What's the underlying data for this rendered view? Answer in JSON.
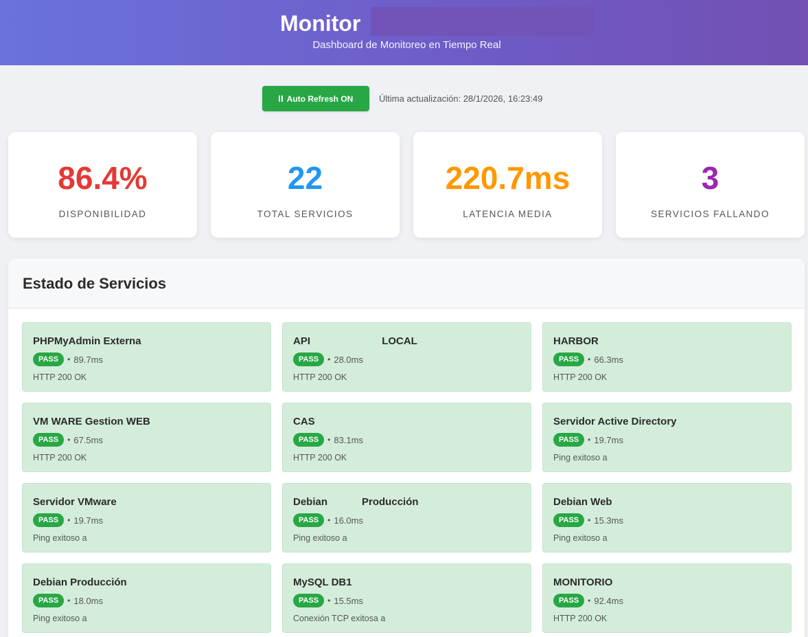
{
  "header": {
    "title": "Monitor",
    "subtitle": "Dashboard de Monitoreo en Tiempo Real"
  },
  "controls": {
    "refresh_label": "Auto Refresh ON",
    "last_update": "Última actualización: 28/1/2026, 16:23:49"
  },
  "stats": [
    {
      "value": "86.4%",
      "label": "DISPONIBILIDAD",
      "color": "#e53935"
    },
    {
      "value": "22",
      "label": "TOTAL SERVICIOS",
      "color": "#2196f3"
    },
    {
      "value": "220.7ms",
      "label": "LATENCIA MEDIA",
      "color": "#ff9800"
    },
    {
      "value": "3",
      "label": "SERVICIOS FALLANDO",
      "color": "#9c27b0"
    }
  ],
  "services": {
    "title": "Estado de Servicios",
    "items": [
      {
        "name": "PHPMyAdmin Externa",
        "status": "PASS",
        "sep": "•",
        "latency": "89.7ms",
        "detail": "HTTP 200 OK"
      },
      {
        "name": "API                         LOCAL",
        "status": "PASS",
        "sep": "•",
        "latency": "28.0ms",
        "detail": "HTTP 200 OK"
      },
      {
        "name": "HARBOR",
        "status": "PASS",
        "sep": "•",
        "latency": "66.3ms",
        "detail": "HTTP 200 OK"
      },
      {
        "name": "VM WARE Gestion WEB",
        "status": "PASS",
        "sep": "•",
        "latency": "67.5ms",
        "detail": "HTTP 200 OK"
      },
      {
        "name": "CAS",
        "status": "PASS",
        "sep": "•",
        "latency": "83.1ms",
        "detail": "HTTP 200 OK"
      },
      {
        "name": "Servidor Active Directory",
        "status": "PASS",
        "sep": "•",
        "latency": "19.7ms",
        "detail": "Ping exitoso a"
      },
      {
        "name": "Servidor VMware",
        "status": "PASS",
        "sep": "•",
        "latency": "19.7ms",
        "detail": "Ping exitoso a"
      },
      {
        "name": "Debian            Producción",
        "status": "PASS",
        "sep": "•",
        "latency": "16.0ms",
        "detail": "Ping exitoso a"
      },
      {
        "name": "Debian Web",
        "status": "PASS",
        "sep": "•",
        "latency": "15.3ms",
        "detail": "Ping exitoso a"
      },
      {
        "name": "Debian Producción",
        "status": "PASS",
        "sep": "•",
        "latency": "18.0ms",
        "detail": "Ping exitoso a"
      },
      {
        "name": "MySQL DB1",
        "status": "PASS",
        "sep": "•",
        "latency": "15.5ms",
        "detail": "Conexión TCP exitosa a"
      },
      {
        "name": "MONITORIO",
        "status": "PASS",
        "sep": "•",
        "latency": "92.4ms",
        "detail": "HTTP 200 OK"
      }
    ]
  }
}
